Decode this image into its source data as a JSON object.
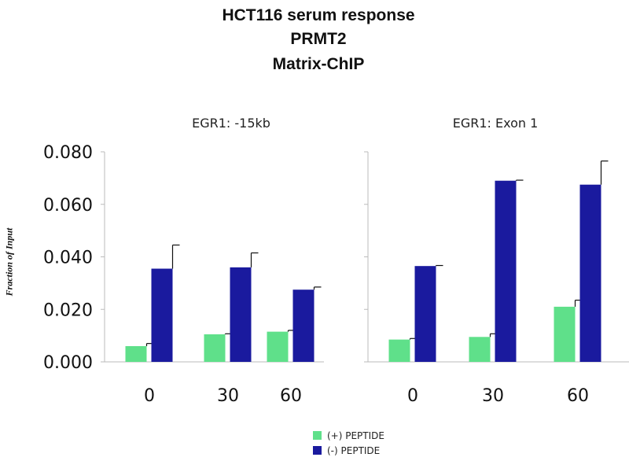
{
  "title_lines": [
    "HCT116 serum response",
    "PRMT2",
    "Matrix-ChIP"
  ],
  "colors": {
    "plus_peptide": "#5fe08a",
    "minus_peptide": "#1a1a9e",
    "axis": "#bbbbbb"
  },
  "legend": [
    {
      "label": "(+) PEPTIDE",
      "color": "#5fe08a"
    },
    {
      "label": "(-) PEPTIDE",
      "color": "#1a1a9e"
    }
  ],
  "chart_data": [
    {
      "type": "bar",
      "title": "EGR1: -15kb",
      "ylabel": "Fraction of Input",
      "xlabel": "",
      "categories": [
        "0",
        "30",
        "60"
      ],
      "ylim": [
        0,
        0.08
      ],
      "yticks": [
        "0.000",
        "0.020",
        "0.040",
        "0.060",
        "0.080"
      ],
      "series": [
        {
          "name": "(+) PEPTIDE",
          "values": [
            0.006,
            0.0105,
            0.0115
          ],
          "errors": [
            0.001,
            0.0002,
            0.0005
          ]
        },
        {
          "name": "(-) PEPTIDE",
          "values": [
            0.0355,
            0.036,
            0.0275
          ],
          "errors": [
            0.009,
            0.0055,
            0.001
          ]
        }
      ],
      "grid": false
    },
    {
      "type": "bar",
      "title": "EGR1: Exon 1",
      "ylabel": "",
      "xlabel": "",
      "categories": [
        "0",
        "30",
        "60"
      ],
      "ylim": [
        0,
        0.08
      ],
      "series": [
        {
          "name": "(+) PEPTIDE",
          "values": [
            0.0085,
            0.0095,
            0.021
          ],
          "errors": [
            0.0004,
            0.0012,
            0.0025
          ]
        },
        {
          "name": "(-) PEPTIDE",
          "values": [
            0.0365,
            0.069,
            0.0675
          ],
          "errors": [
            0.0002,
            0.0002,
            0.009
          ]
        }
      ],
      "grid": false
    }
  ]
}
